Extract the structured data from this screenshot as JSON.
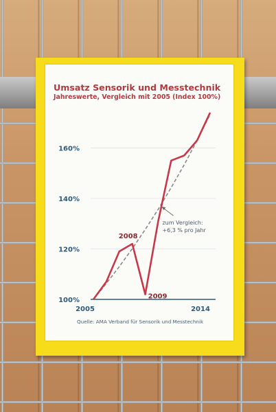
{
  "chart_data": {
    "type": "line",
    "title": "Umsatz Sensorik und Messtechnik",
    "subtitle": "Jahreswerte, Vergleich mit 2005 (Index 100%)",
    "x": [
      2005,
      2006,
      2007,
      2008,
      2009,
      2010,
      2011,
      2012,
      2013,
      2014
    ],
    "series": [
      {
        "values": [
          100,
          107,
          119,
          122,
          102,
          131,
          155,
          157,
          163,
          174
        ]
      },
      {
        "values": [
          100,
          106.3,
          113.0,
          120.1,
          127.7,
          135.7,
          144.3,
          153.3,
          163.0,
          173.3
        ]
      }
    ],
    "ylim": [
      100,
      174
    ],
    "yticks": [
      100,
      120,
      140,
      160
    ],
    "ytick_labels": [
      "100%",
      "120%",
      "140%",
      "160%"
    ],
    "xtick_labels": [
      "2005",
      "2014"
    ],
    "annotations": {
      "a2008": "2008",
      "a2009": "2009",
      "compare_line1": "zum Vergleich:",
      "compare_line2": "+6,3 % pro Jahr"
    },
    "grid": true,
    "colors": {
      "actual": "#c8384a",
      "trend": "#8a8a8a",
      "axis": "#2f5a7a",
      "text": "#b5383e"
    }
  },
  "source": "Quelle: AMA Verband für Sensorik und Messtechnik"
}
